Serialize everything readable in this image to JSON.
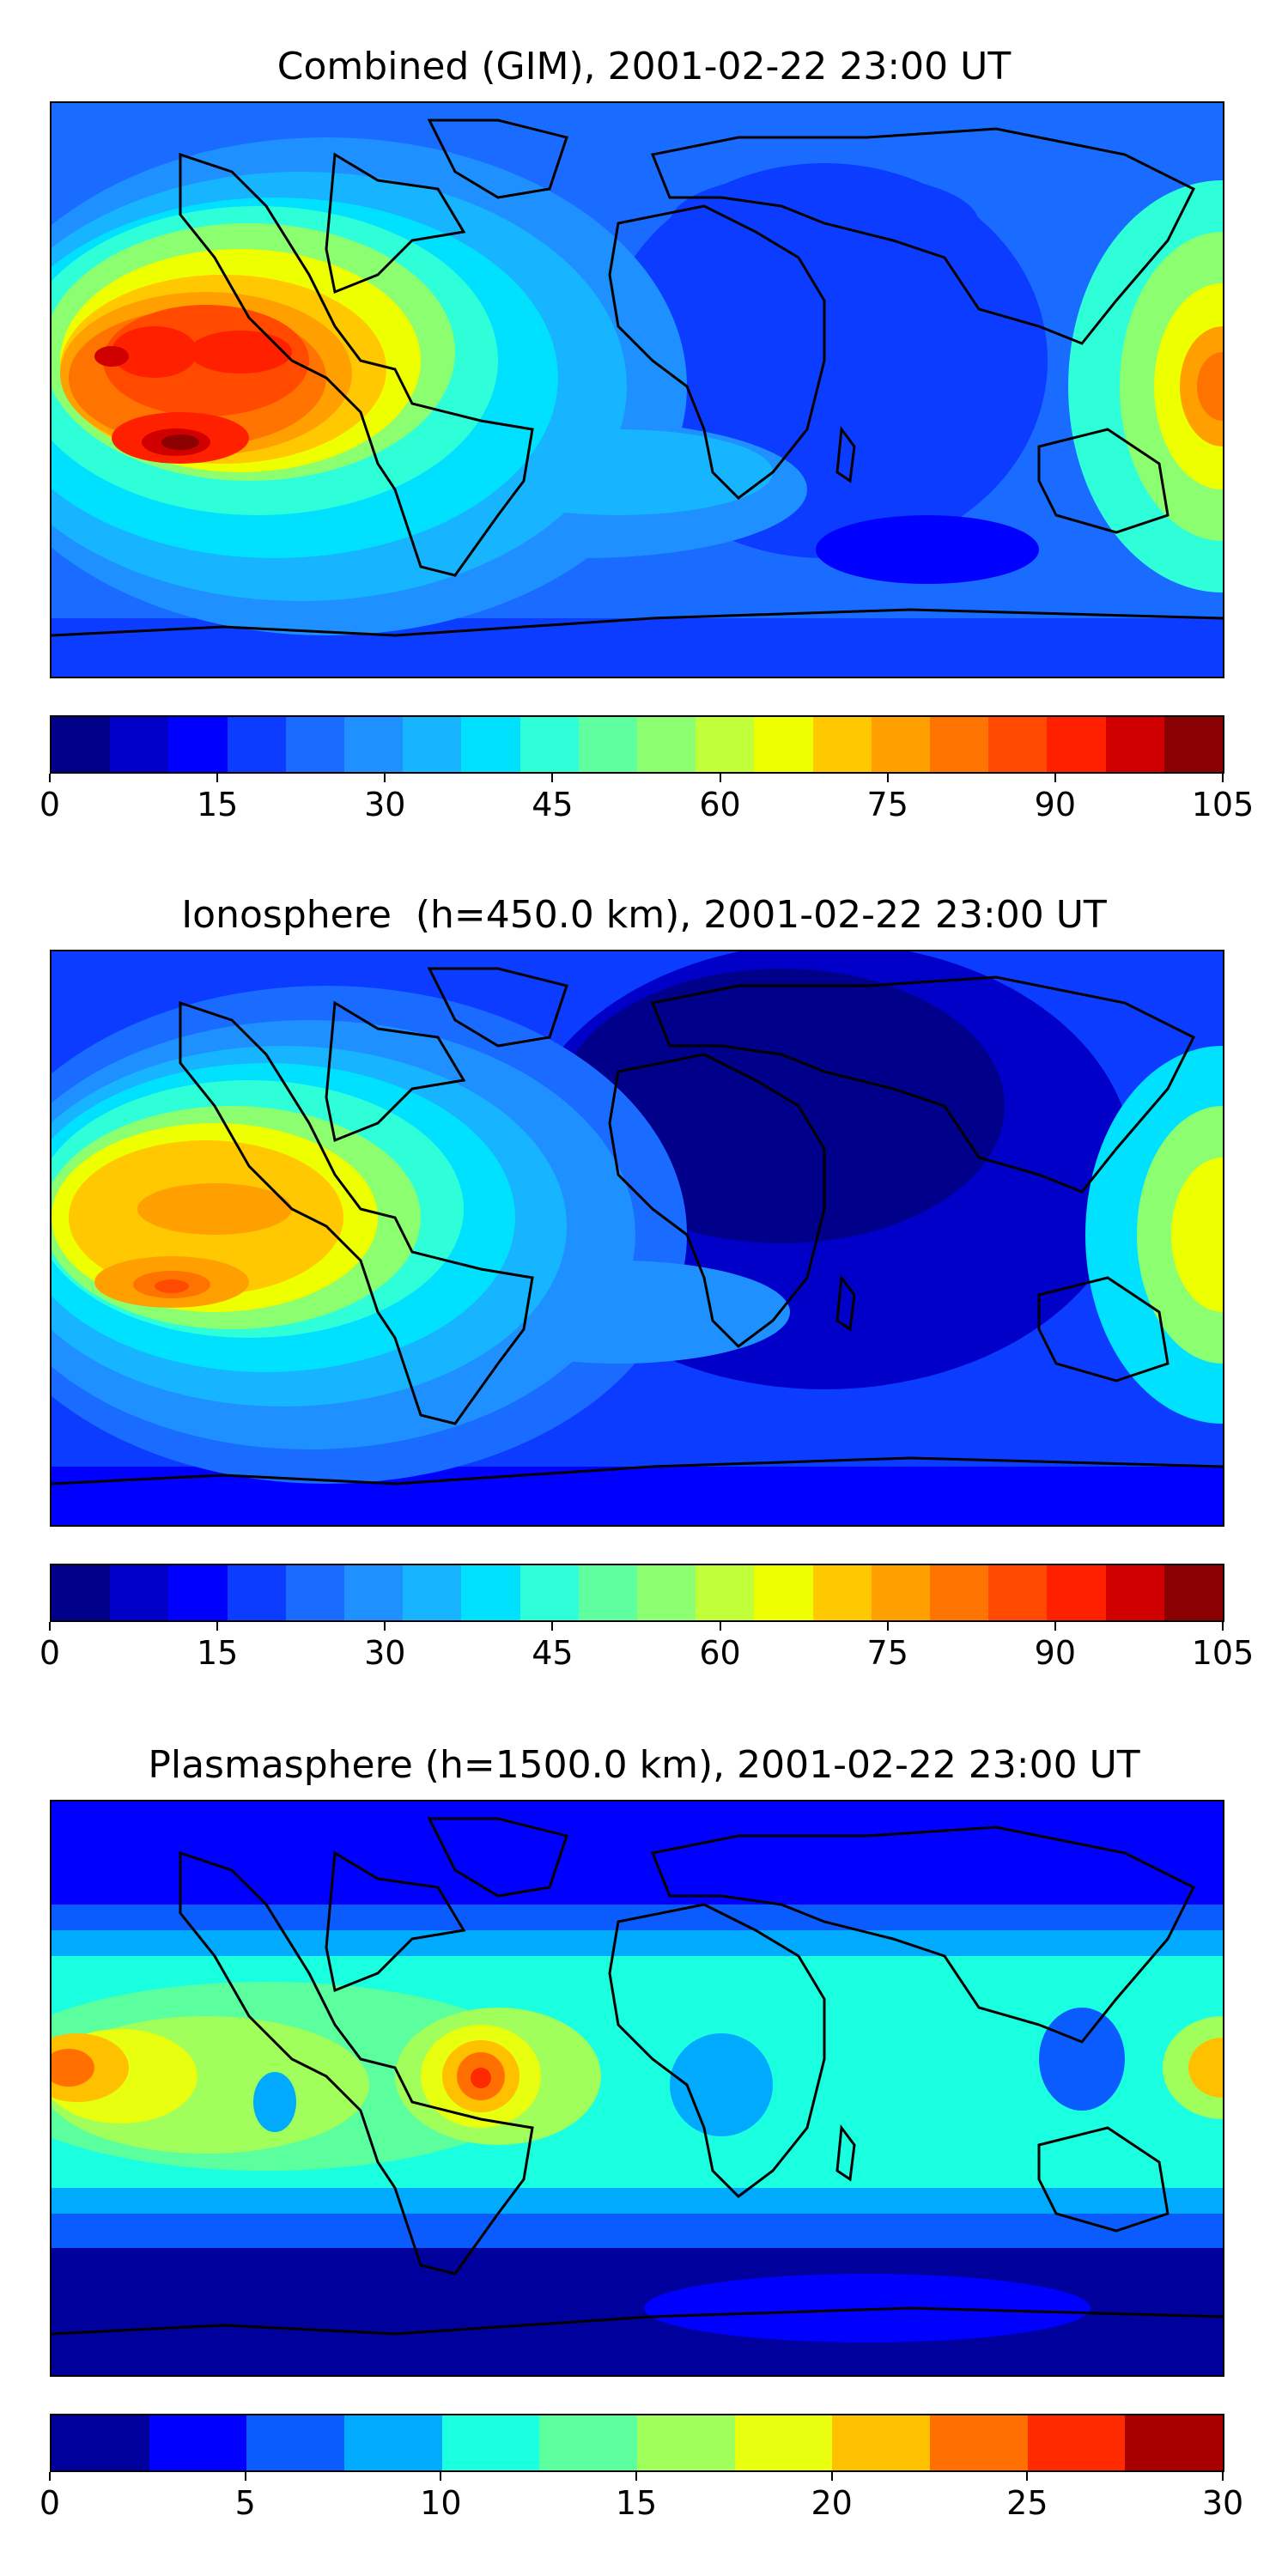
{
  "panels": [
    {
      "title": "Combined (GIM), 2001-02-22 23:00 UT",
      "colorbar": {
        "colors": [
          "#00008b",
          "#0000c8",
          "#0000ff",
          "#0b3cff",
          "#1a6bff",
          "#1f90ff",
          "#17b4ff",
          "#00e0ff",
          "#2effd8",
          "#5fff9f",
          "#8cff70",
          "#c0ff3a",
          "#eeff00",
          "#ffc800",
          "#ffa000",
          "#ff7300",
          "#ff4a00",
          "#ff2000",
          "#d00000",
          "#8b0000"
        ],
        "tick_labels": [
          "0",
          "15",
          "30",
          "45",
          "60",
          "75",
          "90",
          "105"
        ],
        "range": [
          0,
          105
        ]
      }
    },
    {
      "title": "Ionosphere  (h=450.0 km), 2001-02-22 23:00 UT",
      "colorbar": {
        "colors": [
          "#00008b",
          "#0000c8",
          "#0000ff",
          "#0b3cff",
          "#1a6bff",
          "#1f90ff",
          "#17b4ff",
          "#00e0ff",
          "#2effd8",
          "#5fff9f",
          "#8cff70",
          "#c0ff3a",
          "#eeff00",
          "#ffc800",
          "#ffa000",
          "#ff7300",
          "#ff4a00",
          "#ff2000",
          "#d00000",
          "#8b0000"
        ],
        "tick_labels": [
          "0",
          "15",
          "30",
          "45",
          "60",
          "75",
          "90",
          "105"
        ],
        "range": [
          0,
          105
        ]
      }
    },
    {
      "title": "Plasmasphere (h=1500.0 km), 2001-02-22 23:00 UT",
      "colorbar": {
        "colors": [
          "#00009c",
          "#0000ff",
          "#0a5cff",
          "#00aaff",
          "#1affe0",
          "#5cff9e",
          "#a0ff5a",
          "#e8ff10",
          "#ffc000",
          "#ff7000",
          "#ff2a00",
          "#a80000"
        ],
        "tick_labels": [
          "0",
          "5",
          "10",
          "15",
          "20",
          "25",
          "30"
        ],
        "range": [
          0,
          30
        ]
      }
    }
  ]
}
